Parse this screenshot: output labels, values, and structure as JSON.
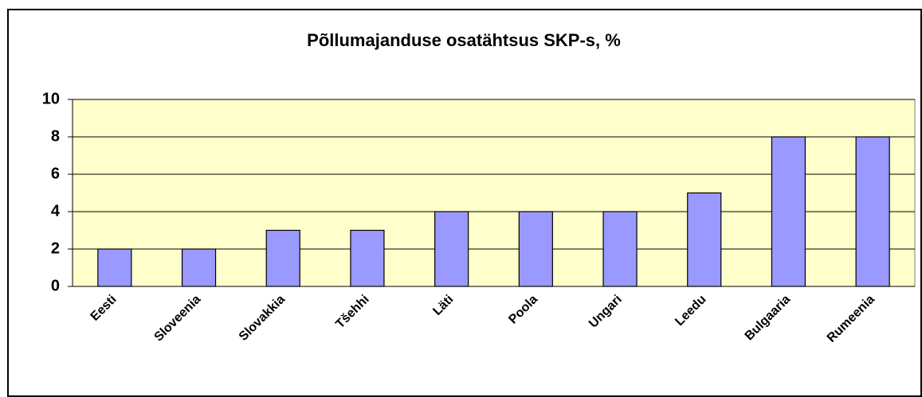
{
  "chart_data": {
    "type": "bar",
    "title": "Põllumajanduse osatähtsus SKP-s, %",
    "categories": [
      "Eesti",
      "Sloveenia",
      "Slovakkia",
      "Tšehhi",
      "Läti",
      "Poola",
      "Ungari",
      "Leedu",
      "Bulgaaria",
      "Rumeenia"
    ],
    "values": [
      2,
      2,
      3,
      3,
      4,
      4,
      4,
      5,
      8,
      8
    ],
    "color": "#9999ff",
    "ylim": [
      0,
      10
    ],
    "yticks": [
      0,
      2,
      4,
      6,
      8,
      10
    ],
    "grid": true
  }
}
